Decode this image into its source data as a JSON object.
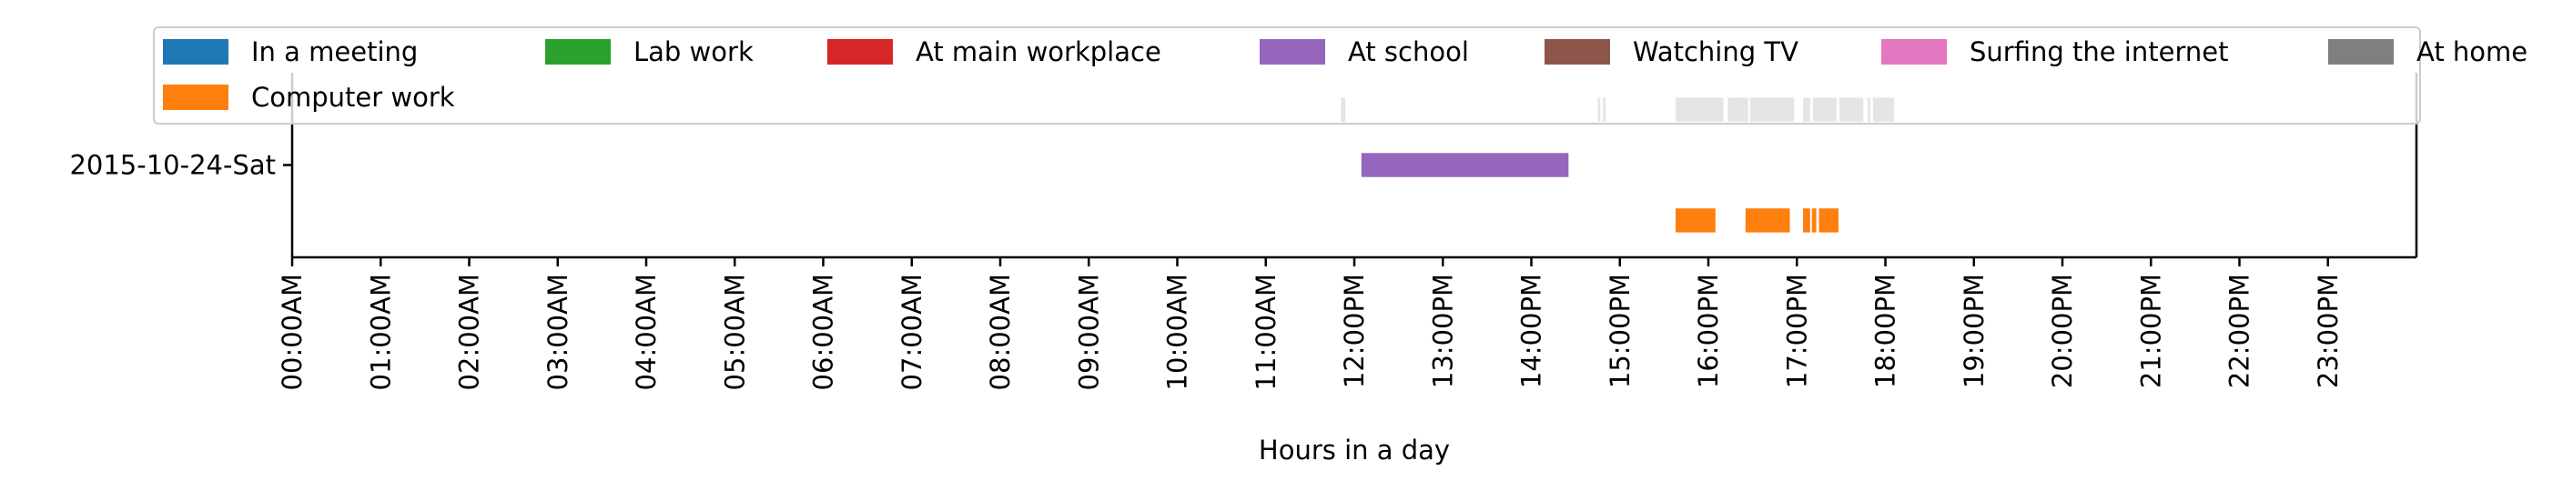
{
  "chart_data": {
    "type": "timeline",
    "xlabel": "Hours in a day",
    "xlim": [
      0,
      24
    ],
    "ylim": [
      0.5,
      1.5
    ],
    "row_labels": [
      "2015-10-24-Sat"
    ],
    "x_ticks": [
      0,
      1,
      2,
      3,
      4,
      5,
      6,
      7,
      8,
      9,
      10,
      11,
      12,
      13,
      14,
      15,
      16,
      17,
      18,
      19,
      20,
      21,
      22,
      23
    ],
    "x_tick_labels": [
      "00:00AM",
      "01:00AM",
      "02:00AM",
      "03:00AM",
      "04:00AM",
      "05:00AM",
      "06:00AM",
      "07:00AM",
      "08:00AM",
      "09:00AM",
      "10:00AM",
      "11:00AM",
      "12:00PM",
      "13:00PM",
      "14:00PM",
      "15:00PM",
      "16:00PM",
      "17:00PM",
      "18:00PM",
      "19:00PM",
      "20:00PM",
      "21:00PM",
      "22:00PM",
      "23:00PM"
    ],
    "legend": {
      "location": "upper center",
      "columns": 7,
      "entries": [
        {
          "name": "In a meeting",
          "color": "#1f77b4"
        },
        {
          "name": "Lab work",
          "color": "#2ca02c"
        },
        {
          "name": "At main workplace",
          "color": "#d62728"
        },
        {
          "name": "At school",
          "color": "#9467bd"
        },
        {
          "name": "Watching TV",
          "color": "#8c564b"
        },
        {
          "name": "Surfing the internet",
          "color": "#e377c2"
        },
        {
          "name": "At home",
          "color": "#7f7f7f"
        },
        {
          "name": "Computer work",
          "color": "#ff7f0e"
        }
      ]
    },
    "series": [
      {
        "name": "At home",
        "color": "#7f7f7f",
        "y": 1.3,
        "height": 0.13,
        "intervals": [
          [
            11.85,
            11.9
          ],
          [
            14.75,
            14.78
          ],
          [
            14.81,
            14.84
          ],
          [
            15.63,
            16.17
          ],
          [
            16.22,
            16.45
          ],
          [
            16.47,
            16.97
          ],
          [
            17.07,
            17.15
          ],
          [
            17.18,
            17.45
          ],
          [
            17.48,
            17.75
          ],
          [
            17.8,
            17.83
          ],
          [
            17.86,
            18.1
          ]
        ]
      },
      {
        "name": "At school",
        "color": "#9467bd",
        "y": 1.0,
        "height": 0.13,
        "intervals": [
          [
            12.08,
            14.42
          ]
        ]
      },
      {
        "name": "Computer work",
        "color": "#ff7f0e",
        "y": 0.7,
        "height": 0.13,
        "intervals": [
          [
            15.63,
            16.08
          ],
          [
            16.42,
            16.92
          ],
          [
            17.07,
            17.15
          ],
          [
            17.17,
            17.22
          ],
          [
            17.25,
            17.47
          ]
        ]
      }
    ]
  }
}
